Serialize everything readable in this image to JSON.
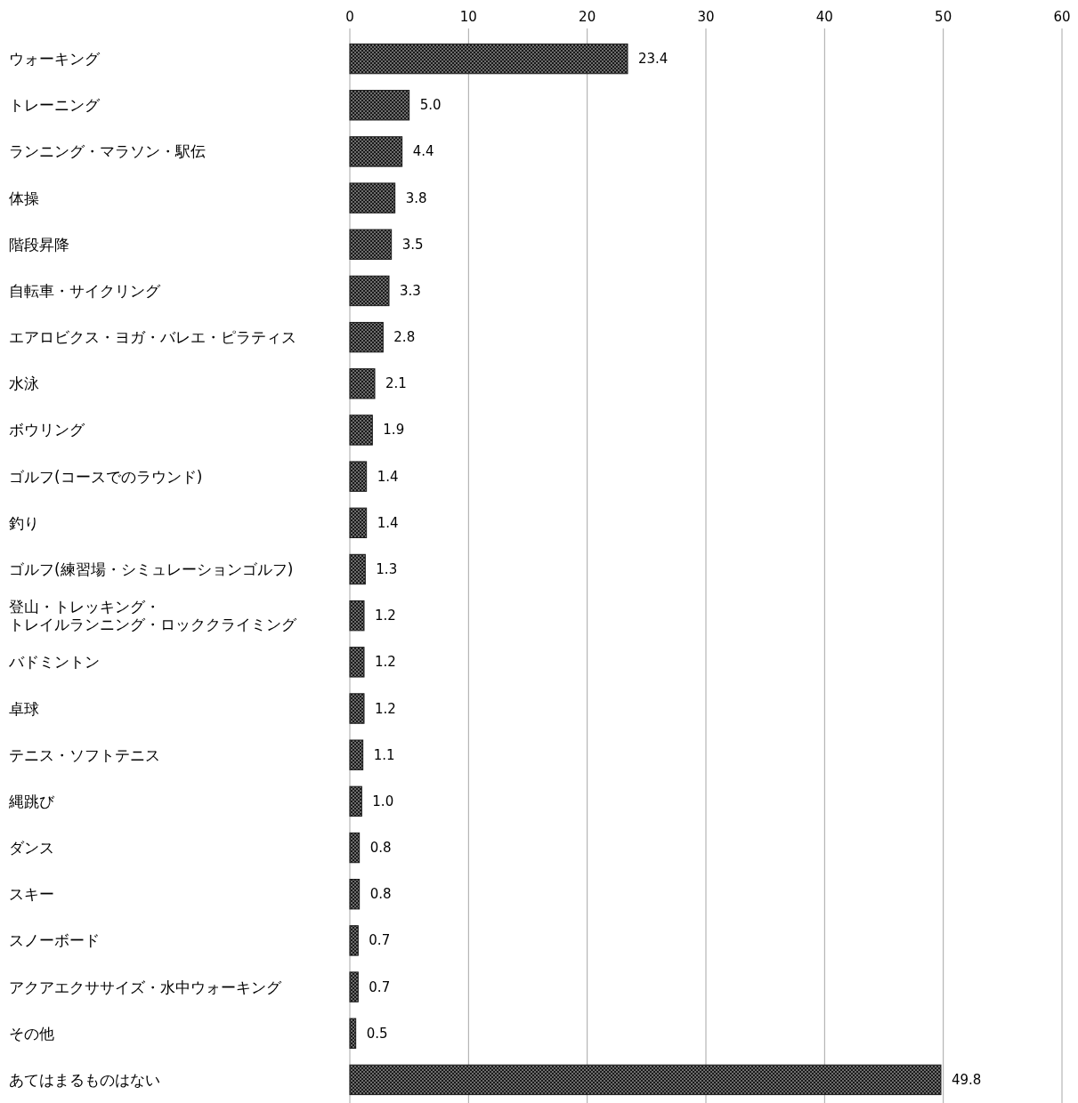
{
  "chart_data": {
    "type": "bar",
    "orientation": "horizontal",
    "categories": [
      "ウォーキング",
      "トレーニング",
      "ランニング・マラソン・駅伝",
      "体操",
      "階段昇降",
      "自転車・サイクリング",
      "エアロビクス・ヨガ・バレエ・ピラティス",
      "水泳",
      "ボウリング",
      "ゴルフ(コースでのラウンド)",
      "釣り",
      "ゴルフ(練習場・シミュレーションゴルフ)",
      "登山・トレッキング・トレイルランニング・ロッククライミング",
      "バドミントン",
      "卓球",
      "テニス・ソフトテニス",
      "縄跳び",
      "ダンス",
      "スキー",
      "スノーボード",
      "アクアエクササイズ・水中ウォーキング",
      "その他",
      "あてはまるものはない"
    ],
    "values": [
      23.4,
      5.0,
      4.4,
      3.8,
      3.5,
      3.3,
      2.8,
      2.1,
      1.9,
      1.4,
      1.4,
      1.3,
      1.2,
      1.2,
      1.2,
      1.1,
      1.0,
      0.8,
      0.8,
      0.7,
      0.7,
      0.5,
      49.8
    ],
    "value_labels": [
      "23.4",
      "5.0",
      "4.4",
      "3.8",
      "3.5",
      "3.3",
      "2.8",
      "2.1",
      "1.9",
      "1.4",
      "1.4",
      "1.3",
      "1.2",
      "1.2",
      "1.2",
      "1.1",
      "1.0",
      "0.8",
      "0.8",
      "0.7",
      "0.7",
      "0.5",
      "49.8"
    ],
    "color": "#1a1a1a",
    "xlim": [
      0,
      60
    ],
    "xticks": [
      0,
      10,
      20,
      30,
      40,
      50,
      60
    ],
    "grid": "x"
  }
}
